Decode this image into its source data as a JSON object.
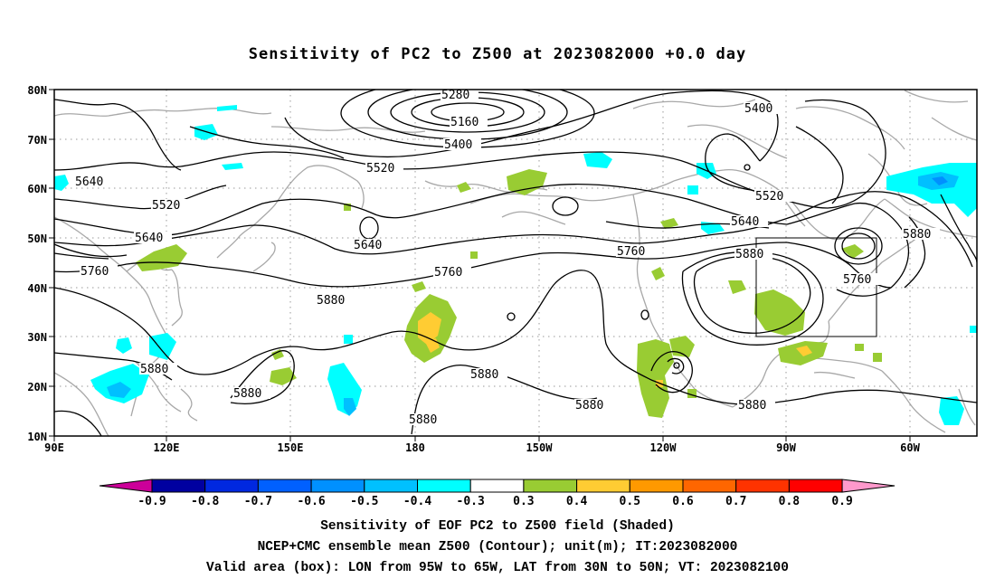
{
  "title": "Sensitivity of PC2 to Z500 at 2023082000 +0.0 day",
  "lat_labels": [
    "80N",
    "70N",
    "60N",
    "50N",
    "40N",
    "30N",
    "20N",
    "10N"
  ],
  "lon_labels": [
    "90E",
    "120E",
    "150E",
    "180",
    "150W",
    "120W",
    "90W",
    "60W"
  ],
  "contour_labels": {
    "c5280": "5280",
    "c5160": "5160",
    "c5400a": "5400",
    "c5400b": "5400",
    "c5640a": "5640",
    "c5520a": "5520",
    "c5520b": "5520",
    "c5640b": "5640",
    "c5640c": "5640",
    "c5520c": "5520",
    "c5760a": "5760",
    "c5760b": "5760",
    "c5760c": "5760",
    "c5760d": "5760",
    "c5880a": "5880",
    "c5880b": "5880",
    "c5880c": "5880",
    "c5880d": "5880",
    "c5880e": "5880",
    "c5880f": "5880",
    "c5880g": "5880",
    "c5880h": "5880",
    "c5880i": "5880"
  },
  "colorbar": {
    "labels": [
      "-0.9",
      "-0.8",
      "-0.7",
      "-0.6",
      "-0.5",
      "-0.4",
      "-0.3",
      "0.3",
      "0.4",
      "0.5",
      "0.6",
      "0.7",
      "0.8",
      "0.9"
    ],
    "colors": [
      "#0000a0",
      "#0028e0",
      "#0060ff",
      "#0090ff",
      "#00c0ff",
      "#00ffff",
      "#ffffff",
      "#99cc33",
      "#ffcc33",
      "#ff9900",
      "#ff6600",
      "#ff3300",
      "#ff0000"
    ],
    "low_arrow_color": "#cc0099",
    "high_arrow_color": "#ff99cc"
  },
  "captions": {
    "line1": "Sensitivity of EOF PC2 to Z500 field (Shaded)",
    "line2": "NCEP+CMC ensemble mean Z500 (Contour); unit(m); IT:2023082000",
    "line3": "Valid area (box): LON from 95W to 65W, LAT from 30N to 50N; VT: 2023082100"
  }
}
